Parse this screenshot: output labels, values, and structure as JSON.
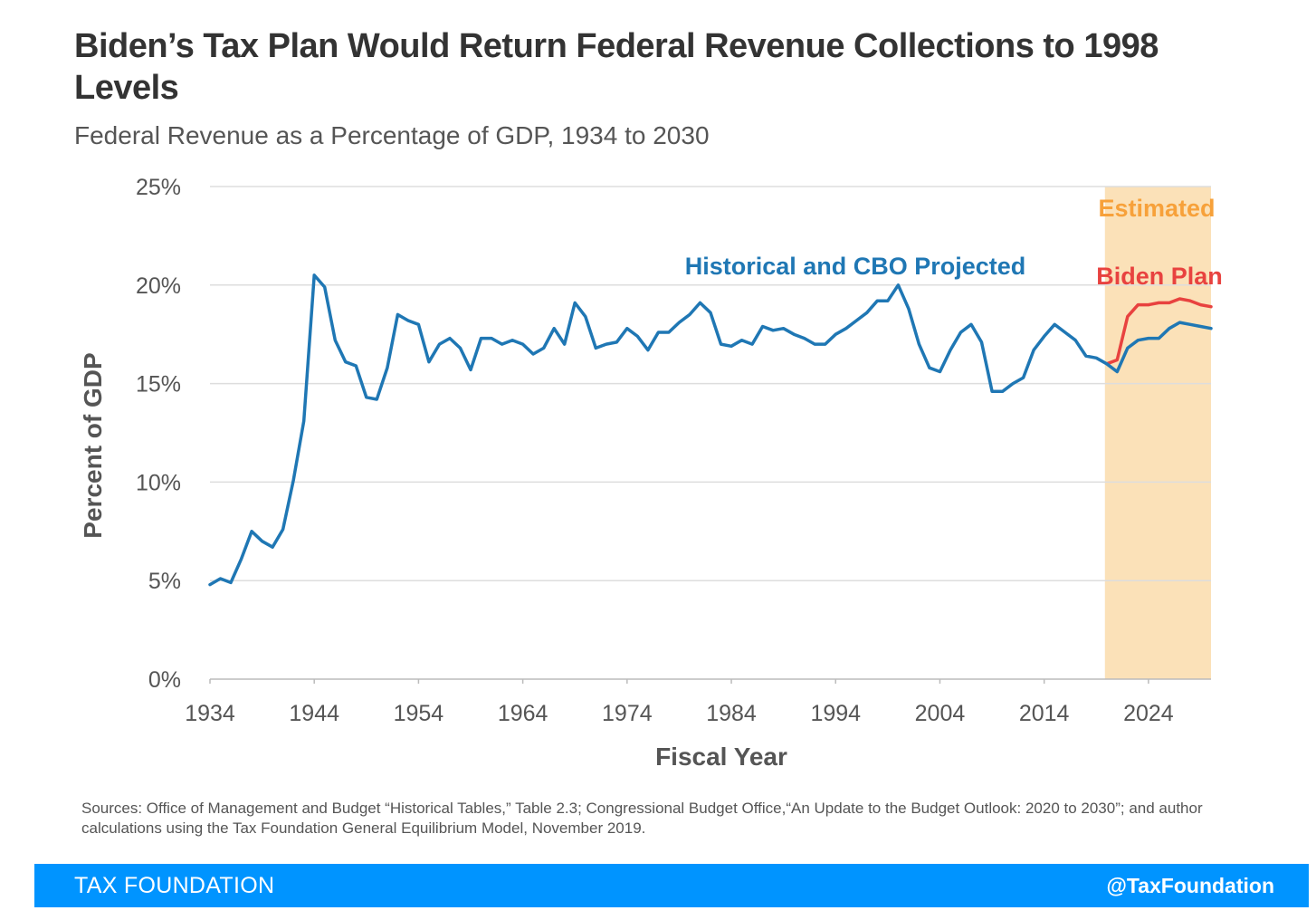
{
  "chart_data": {
    "type": "line",
    "title": "Biden’s Tax Plan Would Return Federal Revenue Collections to 1998 Levels",
    "subtitle": "Federal Revenue as a Percentage of GDP, 1934 to 2030",
    "xlabel": "Fiscal Year",
    "ylabel": "Percent of GDP",
    "xlim": [
      1934,
      2030
    ],
    "ylim": [
      0,
      25
    ],
    "x_ticks": [
      "1934",
      "1944",
      "1954",
      "1964",
      "1974",
      "1984",
      "1994",
      "2004",
      "2014",
      "2024"
    ],
    "y_ticks": [
      "0%",
      "5%",
      "10%",
      "15%",
      "20%",
      "25%"
    ],
    "grid": true,
    "estimated_region": {
      "label": "Estimated",
      "from": 2020,
      "to": 2030,
      "color": "#fbe1b8",
      "label_color": "#f7a13a"
    },
    "series": [
      {
        "name": "Historical and CBO Projected",
        "color": "#1f77b4",
        "x": [
          1934,
          1935,
          1936,
          1937,
          1938,
          1939,
          1940,
          1941,
          1942,
          1943,
          1944,
          1945,
          1946,
          1947,
          1948,
          1949,
          1950,
          1951,
          1952,
          1953,
          1954,
          1955,
          1956,
          1957,
          1958,
          1959,
          1960,
          1961,
          1962,
          1963,
          1964,
          1965,
          1966,
          1967,
          1968,
          1969,
          1970,
          1971,
          1972,
          1973,
          1974,
          1975,
          1976,
          1977,
          1978,
          1979,
          1980,
          1981,
          1982,
          1983,
          1984,
          1985,
          1986,
          1987,
          1988,
          1989,
          1990,
          1991,
          1992,
          1993,
          1994,
          1995,
          1996,
          1997,
          1998,
          1999,
          2000,
          2001,
          2002,
          2003,
          2004,
          2005,
          2006,
          2007,
          2008,
          2009,
          2010,
          2011,
          2012,
          2013,
          2014,
          2015,
          2016,
          2017,
          2018,
          2019,
          2020,
          2021,
          2022,
          2023,
          2024,
          2025,
          2026,
          2027,
          2028,
          2029,
          2030
        ],
        "values": [
          4.8,
          5.1,
          4.9,
          6.1,
          7.5,
          7.0,
          6.7,
          7.6,
          10.1,
          13.1,
          20.5,
          19.9,
          17.2,
          16.1,
          15.9,
          14.3,
          14.2,
          15.8,
          18.5,
          18.2,
          18.0,
          16.1,
          17.0,
          17.3,
          16.8,
          15.7,
          17.3,
          17.3,
          17.0,
          17.2,
          17.0,
          16.5,
          16.8,
          17.8,
          17.0,
          19.1,
          18.4,
          16.8,
          17.0,
          17.1,
          17.8,
          17.4,
          16.7,
          17.6,
          17.6,
          18.1,
          18.5,
          19.1,
          18.6,
          17.0,
          16.9,
          17.2,
          17.0,
          17.9,
          17.7,
          17.8,
          17.5,
          17.3,
          17.0,
          17.0,
          17.5,
          17.8,
          18.2,
          18.6,
          19.2,
          19.2,
          20.0,
          18.8,
          17.0,
          15.8,
          15.6,
          16.7,
          17.6,
          18.0,
          17.1,
          14.6,
          14.6,
          15.0,
          15.3,
          16.7,
          17.4,
          18.0,
          17.6,
          17.2,
          16.4,
          16.3,
          16.0,
          15.6,
          16.8,
          17.2,
          17.3,
          17.3,
          17.8,
          18.1,
          18.0,
          17.9,
          17.8
        ]
      },
      {
        "name": "Biden Plan",
        "color": "#e8423f",
        "x": [
          2020,
          2021,
          2022,
          2023,
          2024,
          2025,
          2026,
          2027,
          2028,
          2029,
          2030
        ],
        "values": [
          16.0,
          16.2,
          18.4,
          19.0,
          19.0,
          19.1,
          19.1,
          19.3,
          19.2,
          19.0,
          18.9
        ]
      }
    ]
  },
  "sources": "Sources: Office of Management and Budget “Historical Tables,” Table 2.3; Congressional Budget Office,“An Update to the Budget Outlook: 2020 to 2030”; and author calculations using the Tax Foundation General Equilibrium Model, November 2019.",
  "footer": {
    "brand": "TAX FOUNDATION",
    "handle": "@TaxFoundation",
    "color": "#0094ff"
  }
}
